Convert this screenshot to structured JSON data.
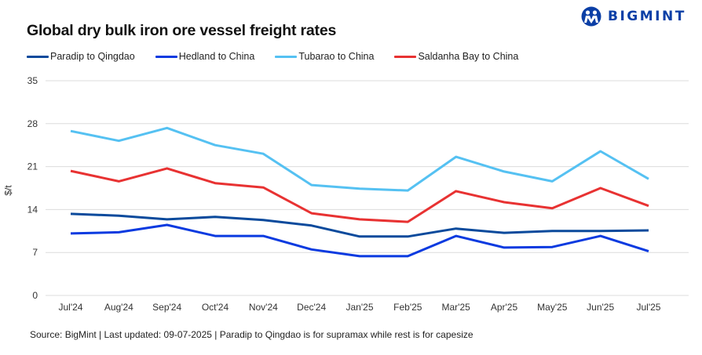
{
  "header": {
    "brand": "BIGMINT",
    "brand_color": "#0b3fa6"
  },
  "footer": {
    "note": "Source: BigMint | Last updated: 09-07-2025 | Paradip to Qingdao is for supramax while rest is for capesize"
  },
  "chart_data": {
    "type": "line",
    "title": "Global dry bulk iron ore vessel freight rates",
    "xlabel": "",
    "ylabel": "$/t",
    "ylim": [
      0,
      35
    ],
    "yticks": [
      0,
      7,
      14,
      21,
      28,
      35
    ],
    "grid": true,
    "legend_position": "top-left",
    "categories": [
      "Jul'24",
      "Aug'24",
      "Sep'24",
      "Oct'24",
      "Nov'24",
      "Dec'24",
      "Jan'25",
      "Feb'25",
      "Mar'25",
      "Apr'25",
      "May'25",
      "Jun'25",
      "Jul'25"
    ],
    "series": [
      {
        "name": "Paradip to Qingdao",
        "color": "#0a4a9c",
        "values": [
          13.3,
          13.0,
          12.4,
          12.8,
          12.3,
          11.4,
          9.6,
          9.6,
          10.9,
          10.2,
          10.5,
          10.5,
          10.6
        ]
      },
      {
        "name": "Hedland to China",
        "color": "#0a3ae0",
        "values": [
          10.1,
          10.3,
          11.5,
          9.7,
          9.7,
          7.5,
          6.4,
          6.4,
          9.7,
          7.8,
          7.9,
          9.7,
          7.2
        ]
      },
      {
        "name": "Tubarao to China",
        "color": "#55c1f2",
        "values": [
          26.8,
          25.2,
          27.3,
          24.5,
          23.1,
          18.0,
          17.4,
          17.1,
          22.6,
          20.2,
          18.6,
          23.5,
          19.0
        ]
      },
      {
        "name": "Saldanha Bay to China",
        "color": "#e83232",
        "values": [
          20.3,
          18.6,
          20.7,
          18.3,
          17.6,
          13.4,
          12.4,
          12.0,
          17.0,
          15.2,
          14.2,
          17.5,
          14.6
        ]
      }
    ]
  }
}
